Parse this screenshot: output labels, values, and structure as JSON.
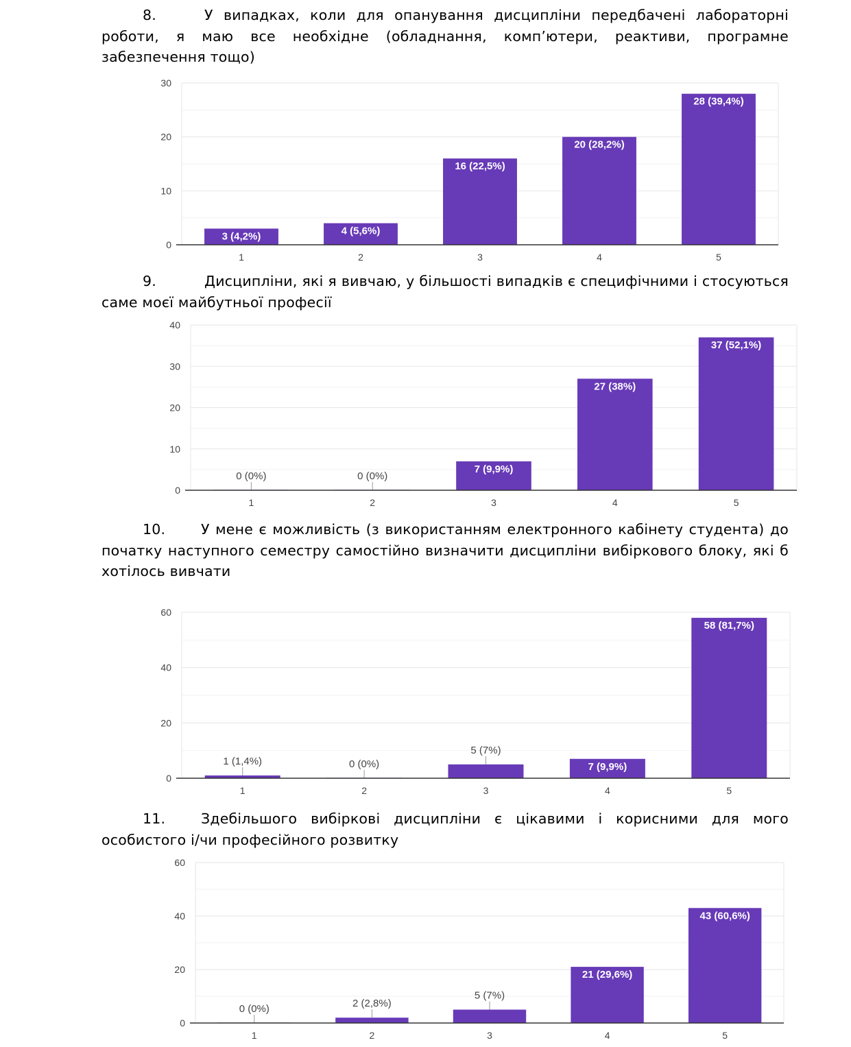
{
  "questions": [
    {
      "number": "8.",
      "text": "У випадках, коли для опанування дисципліни передбачені лабораторні роботи, я маю все необхідне (обладнання, комп’ютери, реактиви, програмне забезпечення тощо)"
    },
    {
      "number": "9.",
      "text": "Дисципліни, які я вивчаю, у більшості випадків є специфічними і стосуються саме моєї майбутньої професії"
    },
    {
      "number": "10.",
      "text": "У мене є можливість (з використанням електронного кабінету студента) до початку наступного семестру самостійно визначити дисципліни вибіркового блоку, які б хотілось вивчати"
    },
    {
      "number": "11.",
      "text": "Здебільшого вибіркові дисципліни є цікавими і корисними для мого особистого і/чи професійного розвитку"
    }
  ],
  "colors": {
    "bar": "#673ab7",
    "grid": "#e6e6e6",
    "axis": "#333333",
    "label_inside": "#ffffff",
    "label_outside": "#444444",
    "tick": "#444444"
  },
  "chart_data": [
    {
      "type": "bar",
      "title": "",
      "xlabel": "",
      "ylabel": "",
      "categories": [
        "1",
        "2",
        "3",
        "4",
        "5"
      ],
      "values": [
        3,
        4,
        16,
        20,
        28
      ],
      "data_labels": [
        "3 (4,2%)",
        "4 (5,6%)",
        "16 (22,5%)",
        "20 (28,2%)",
        "28 (39,4%)"
      ],
      "ylim": [
        0,
        30
      ],
      "yticks": [
        "0",
        "10",
        "20",
        "30"
      ],
      "ytick_values": [
        0,
        10,
        20,
        30
      ],
      "minor_step": 5
    },
    {
      "type": "bar",
      "title": "",
      "xlabel": "",
      "ylabel": "",
      "categories": [
        "1",
        "2",
        "3",
        "4",
        "5"
      ],
      "values": [
        0,
        0,
        7,
        27,
        37
      ],
      "data_labels": [
        "0 (0%)",
        "0 (0%)",
        "7 (9,9%)",
        "27 (38%)",
        "37 (52,1%)"
      ],
      "ylim": [
        0,
        40
      ],
      "yticks": [
        "0",
        "10",
        "20",
        "30",
        "40"
      ],
      "ytick_values": [
        0,
        10,
        20,
        30,
        40
      ],
      "minor_step": 5
    },
    {
      "type": "bar",
      "title": "",
      "xlabel": "",
      "ylabel": "",
      "categories": [
        "1",
        "2",
        "3",
        "4",
        "5"
      ],
      "values": [
        1,
        0,
        5,
        7,
        58
      ],
      "data_labels": [
        "1 (1,4%)",
        "0 (0%)",
        "5 (7%)",
        "7 (9,9%)",
        "58 (81,7%)"
      ],
      "ylim": [
        0,
        60
      ],
      "yticks": [
        "0",
        "20",
        "40",
        "60"
      ],
      "ytick_values": [
        0,
        20,
        40,
        60
      ],
      "minor_step": 10
    },
    {
      "type": "bar",
      "title": "",
      "xlabel": "",
      "ylabel": "",
      "categories": [
        "1",
        "2",
        "3",
        "4",
        "5"
      ],
      "values": [
        0,
        2,
        5,
        21,
        43
      ],
      "data_labels": [
        "0 (0%)",
        "2 (2,8%)",
        "5 (7%)",
        "21 (29,6%)",
        "43 (60,6%)"
      ],
      "ylim": [
        0,
        60
      ],
      "yticks": [
        "0",
        "20",
        "40",
        "60"
      ],
      "ytick_values": [
        0,
        20,
        40,
        60
      ],
      "minor_step": 10
    }
  ]
}
